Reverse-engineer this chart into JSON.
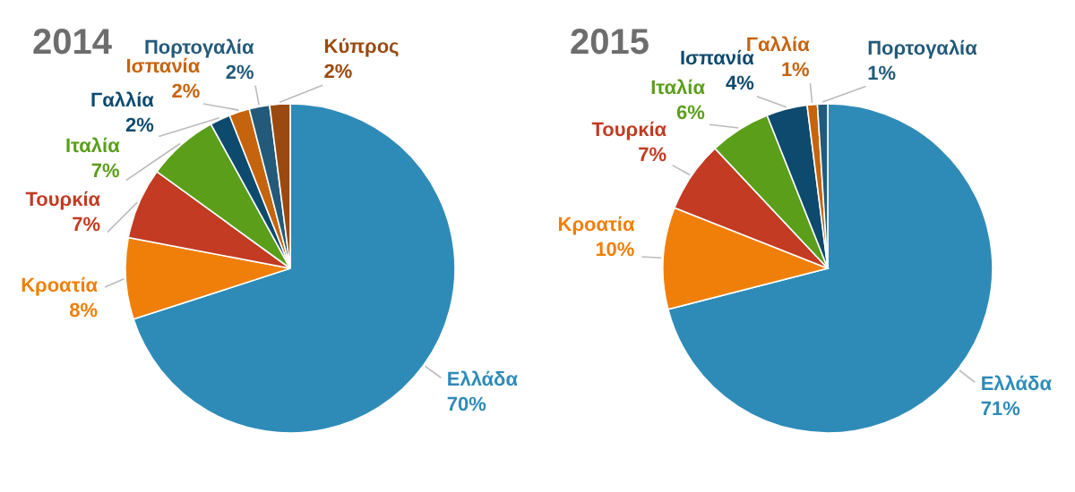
{
  "chart_data": [
    {
      "type": "pie",
      "title": "2014",
      "categories": [
        "Ελλάδα",
        "Κροατία",
        "Τουρκία",
        "Ιταλία",
        "Γαλλία",
        "Ισπανία",
        "Πορτογαλία",
        "Κύπρος"
      ],
      "values": [
        70,
        8,
        7,
        7,
        2,
        2,
        2,
        2
      ],
      "value_labels": [
        "70%",
        "8%",
        "7%",
        "7%",
        "2%",
        "2%",
        "2%",
        "2%"
      ],
      "colors": [
        "#2e8bb8",
        "#f07f09",
        "#c23b22",
        "#5a9e1a",
        "#0d4a6e",
        "#c6640e",
        "#235a7a",
        "#9a4a10"
      ]
    },
    {
      "type": "pie",
      "title": "2015",
      "categories": [
        "Ελλάδα",
        "Κροατία",
        "Τουρκία",
        "Ιταλία",
        "Ισπανία",
        "Γαλλία",
        "Πορτογαλία"
      ],
      "values": [
        71,
        10,
        7,
        6,
        4,
        1,
        1
      ],
      "value_labels": [
        "71%",
        "10%",
        "7%",
        "6%",
        "4%",
        "1%",
        "1%"
      ],
      "colors": [
        "#2e8bb8",
        "#f07f09",
        "#c23b22",
        "#5a9e1a",
        "#0d4a6e",
        "#c6640e",
        "#235a7a"
      ]
    }
  ]
}
